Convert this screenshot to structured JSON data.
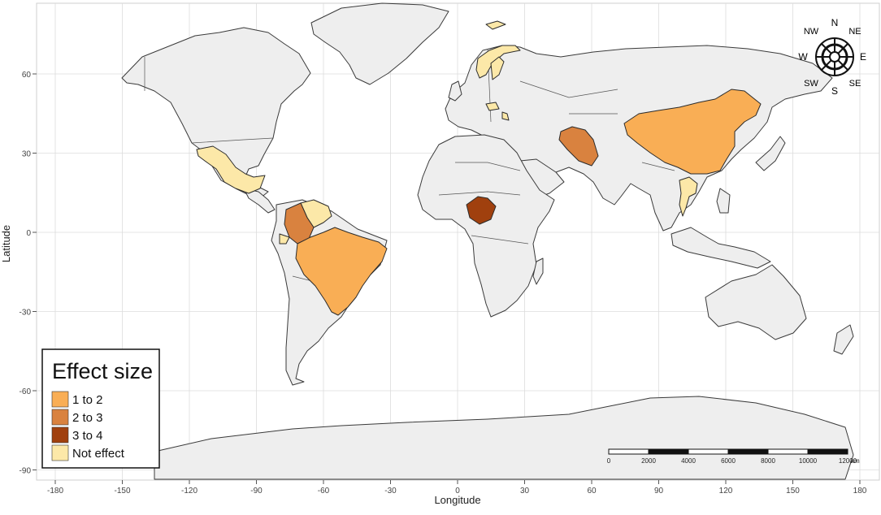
{
  "map": {
    "x_axis": {
      "title": "Longitude",
      "ticks": [
        -180,
        -150,
        -120,
        -90,
        -60,
        -30,
        0,
        30,
        60,
        90,
        120,
        150,
        180
      ]
    },
    "y_axis": {
      "title": "Latitude",
      "ticks": [
        60,
        30,
        0,
        -30,
        -60,
        -90
      ]
    },
    "legend": {
      "title": "Effect size",
      "placement": "bottom-left",
      "items": [
        {
          "label": "1 to 2",
          "color": "#f9ae55"
        },
        {
          "label": "2 to 3",
          "color": "#d9823f"
        },
        {
          "label": "3 to 4",
          "color": "#a0400e"
        },
        {
          "label": "Not effect",
          "color": "#fce8a8"
        }
      ]
    },
    "compass": {
      "labels": {
        "n": "N",
        "ne": "NE",
        "e": "E",
        "se": "SE",
        "s": "S",
        "sw": "SW",
        "w": "W",
        "nw": "NW"
      }
    },
    "scale_bar": {
      "labels": [
        "0",
        "2000",
        "4000",
        "6000",
        "8000",
        "10000",
        "12000"
      ],
      "unit": "km"
    },
    "highlighted_countries": [
      {
        "name": "Mexico",
        "category": "Not effect"
      },
      {
        "name": "Colombia",
        "category": "2 to 3"
      },
      {
        "name": "Venezuela",
        "category": "Not effect"
      },
      {
        "name": "Ecuador",
        "category": "Not effect"
      },
      {
        "name": "Brazil",
        "category": "1 to 2"
      },
      {
        "name": "Nigeria",
        "category": "3 to 4"
      },
      {
        "name": "Iran",
        "category": "2 to 3"
      },
      {
        "name": "China",
        "category": "1 to 2"
      },
      {
        "name": "Thailand",
        "category": "Not effect"
      },
      {
        "name": "Norway",
        "category": "Not effect"
      },
      {
        "name": "Sweden",
        "category": "Not effect"
      },
      {
        "name": "Czech Republic",
        "category": "Not effect"
      },
      {
        "name": "Serbia",
        "category": "Not effect"
      }
    ],
    "colors": {
      "land": "#eeeeee",
      "panel": "#ffffff",
      "grid": "#dcdcdc"
    }
  }
}
